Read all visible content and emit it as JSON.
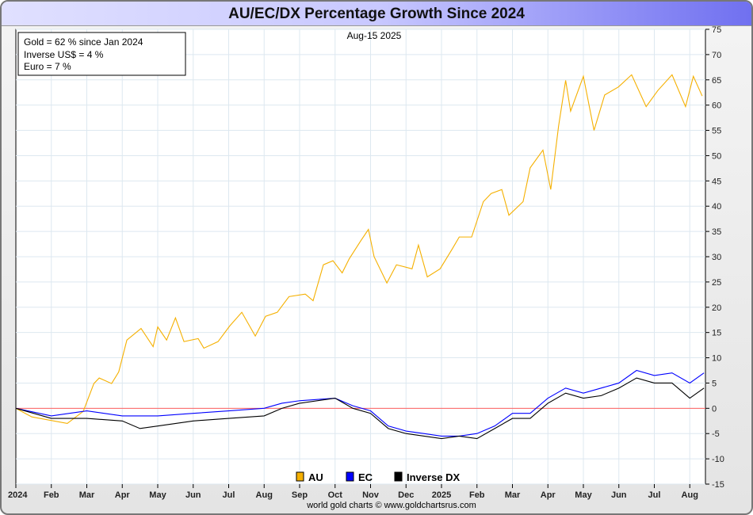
{
  "chart_data": {
    "type": "line",
    "title": "AU/EC/DX Percentage Growth Since 2024",
    "date_label": "Aug-15  2025",
    "annotations": [
      "Gold = 62 % since Jan 2024",
      "Inverse US$ = 4 %",
      "Euro = 7 %"
    ],
    "credit": "world gold charts © www.goldchartsrus.com",
    "ylim": [
      -15,
      75
    ],
    "yticks": [
      75,
      70,
      65,
      60,
      55,
      50,
      45,
      40,
      35,
      30,
      25,
      20,
      15,
      10,
      5,
      0,
      -5,
      -10,
      -15
    ],
    "x_unit": "months since Jan 2024",
    "xticks": [
      "2024",
      "Feb",
      "Mar",
      "Apr",
      "May",
      "Jun",
      "Jul",
      "Aug",
      "Sep",
      "Oct",
      "Nov",
      "Dec",
      "2025",
      "Feb",
      "Mar",
      "Apr",
      "May",
      "Jun",
      "Jul",
      "Aug"
    ],
    "reference_line": 0,
    "series": [
      {
        "name": "AU",
        "color": "#f5b000",
        "points": [
          [
            0,
            0
          ],
          [
            0.45,
            -1.7
          ],
          [
            1.45,
            -3
          ],
          [
            1.9,
            -0.6
          ],
          [
            2.2,
            4.9
          ],
          [
            2.35,
            6
          ],
          [
            2.7,
            4.9
          ],
          [
            2.9,
            7.2
          ],
          [
            3.13,
            13.5
          ],
          [
            3.53,
            15.8
          ],
          [
            3.87,
            12.2
          ],
          [
            4,
            16.1
          ],
          [
            4.25,
            13.5
          ],
          [
            4.5,
            17.9
          ],
          [
            4.74,
            13.2
          ],
          [
            5.14,
            13.8
          ],
          [
            5.3,
            11.9
          ],
          [
            5.7,
            13.2
          ],
          [
            6.03,
            16.3
          ],
          [
            6.37,
            19
          ],
          [
            6.75,
            14.3
          ],
          [
            7.04,
            18.2
          ],
          [
            7.37,
            19
          ],
          [
            7.7,
            22.1
          ],
          [
            8.16,
            22.6
          ],
          [
            8.38,
            21.3
          ],
          [
            8.67,
            28.4
          ],
          [
            8.94,
            29.2
          ],
          [
            9.2,
            26.8
          ],
          [
            9.4,
            29.6
          ],
          [
            9.72,
            33.1
          ],
          [
            9.94,
            35.4
          ],
          [
            10.1,
            30
          ],
          [
            10.46,
            24.8
          ],
          [
            10.73,
            28.4
          ],
          [
            11.17,
            27.6
          ],
          [
            11.35,
            32.3
          ],
          [
            11.6,
            26
          ],
          [
            11.96,
            27.6
          ],
          [
            12.3,
            31.5
          ],
          [
            12.5,
            33.9
          ],
          [
            12.85,
            33.9
          ],
          [
            13.18,
            40.9
          ],
          [
            13.4,
            42.5
          ],
          [
            13.7,
            43.3
          ],
          [
            13.9,
            38.2
          ],
          [
            14.3,
            40.9
          ],
          [
            14.5,
            47.6
          ],
          [
            14.86,
            51.1
          ],
          [
            15.08,
            43.3
          ],
          [
            15.3,
            55.8
          ],
          [
            15.5,
            64.9
          ],
          [
            15.64,
            58.8
          ],
          [
            16,
            65.7
          ],
          [
            16.3,
            55
          ],
          [
            16.6,
            62
          ],
          [
            16.99,
            63.6
          ],
          [
            17.36,
            66
          ],
          [
            17.77,
            59.7
          ],
          [
            18.1,
            62.9
          ],
          [
            18.5,
            66
          ],
          [
            18.88,
            59.7
          ],
          [
            19.1,
            65.7
          ],
          [
            19.35,
            61.8
          ]
        ]
      },
      {
        "name": "EC",
        "color": "#0000ff",
        "points": [
          [
            0,
            0
          ],
          [
            1,
            -1.5
          ],
          [
            2,
            -0.5
          ],
          [
            3,
            -1.5
          ],
          [
            4,
            -1.5
          ],
          [
            5,
            -1
          ],
          [
            6,
            -0.5
          ],
          [
            7,
            0
          ],
          [
            7.5,
            1
          ],
          [
            8,
            1.5
          ],
          [
            9,
            2
          ],
          [
            9.5,
            0.5
          ],
          [
            10,
            -0.5
          ],
          [
            10.5,
            -3.5
          ],
          [
            11,
            -4.5
          ],
          [
            11.5,
            -5
          ],
          [
            12,
            -5.5
          ],
          [
            12.5,
            -5.5
          ],
          [
            13,
            -5
          ],
          [
            13.5,
            -3.5
          ],
          [
            14,
            -1
          ],
          [
            14.5,
            -1
          ],
          [
            15,
            2
          ],
          [
            15.5,
            4
          ],
          [
            16,
            3
          ],
          [
            16.5,
            4
          ],
          [
            17,
            5
          ],
          [
            17.5,
            7.5
          ],
          [
            18,
            6.5
          ],
          [
            18.5,
            7
          ],
          [
            19,
            5
          ],
          [
            19.4,
            7
          ]
        ]
      },
      {
        "name": "Inverse DX",
        "color": "#000000",
        "points": [
          [
            0,
            0
          ],
          [
            1,
            -2
          ],
          [
            2,
            -2
          ],
          [
            3,
            -2.5
          ],
          [
            3.5,
            -4
          ],
          [
            4,
            -3.5
          ],
          [
            5,
            -2.5
          ],
          [
            6,
            -2
          ],
          [
            7,
            -1.5
          ],
          [
            7.5,
            0
          ],
          [
            8,
            1
          ],
          [
            9,
            2
          ],
          [
            9.5,
            0
          ],
          [
            10,
            -1
          ],
          [
            10.5,
            -4
          ],
          [
            11,
            -5
          ],
          [
            12,
            -6
          ],
          [
            12.5,
            -5.5
          ],
          [
            13,
            -6
          ],
          [
            13.5,
            -4
          ],
          [
            14,
            -2
          ],
          [
            14.5,
            -2
          ],
          [
            15,
            1
          ],
          [
            15.5,
            3
          ],
          [
            16,
            2
          ],
          [
            16.5,
            2.5
          ],
          [
            17,
            4
          ],
          [
            17.5,
            6
          ],
          [
            18,
            5
          ],
          [
            18.5,
            5
          ],
          [
            19,
            2
          ],
          [
            19.4,
            4
          ]
        ]
      }
    ]
  }
}
